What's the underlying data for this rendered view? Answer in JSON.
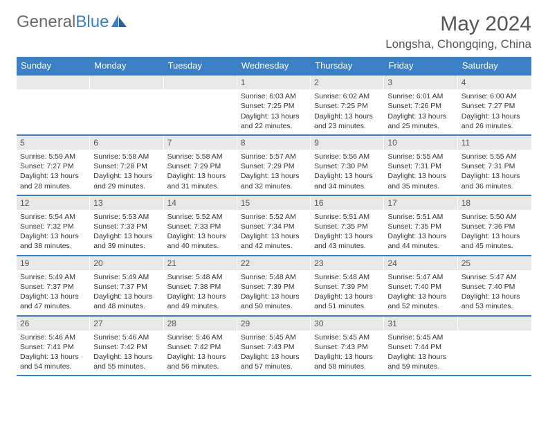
{
  "brand": {
    "name_gray": "General",
    "name_blue": "Blue"
  },
  "title": "May 2024",
  "location": "Longsha, Chongqing, China",
  "theme": {
    "header_bg": "#3b7fc4",
    "row_border": "#3b7fc4",
    "daynum_bg": "#e8e8e8",
    "text": "#333333",
    "muted": "#555555"
  },
  "weekdays": [
    "Sunday",
    "Monday",
    "Tuesday",
    "Wednesday",
    "Thursday",
    "Friday",
    "Saturday"
  ],
  "weeks": [
    [
      null,
      null,
      null,
      {
        "d": "1",
        "sr": "6:03 AM",
        "ss": "7:25 PM",
        "dl": "13 hours and 22 minutes."
      },
      {
        "d": "2",
        "sr": "6:02 AM",
        "ss": "7:25 PM",
        "dl": "13 hours and 23 minutes."
      },
      {
        "d": "3",
        "sr": "6:01 AM",
        "ss": "7:26 PM",
        "dl": "13 hours and 25 minutes."
      },
      {
        "d": "4",
        "sr": "6:00 AM",
        "ss": "7:27 PM",
        "dl": "13 hours and 26 minutes."
      }
    ],
    [
      {
        "d": "5",
        "sr": "5:59 AM",
        "ss": "7:27 PM",
        "dl": "13 hours and 28 minutes."
      },
      {
        "d": "6",
        "sr": "5:58 AM",
        "ss": "7:28 PM",
        "dl": "13 hours and 29 minutes."
      },
      {
        "d": "7",
        "sr": "5:58 AM",
        "ss": "7:29 PM",
        "dl": "13 hours and 31 minutes."
      },
      {
        "d": "8",
        "sr": "5:57 AM",
        "ss": "7:29 PM",
        "dl": "13 hours and 32 minutes."
      },
      {
        "d": "9",
        "sr": "5:56 AM",
        "ss": "7:30 PM",
        "dl": "13 hours and 34 minutes."
      },
      {
        "d": "10",
        "sr": "5:55 AM",
        "ss": "7:31 PM",
        "dl": "13 hours and 35 minutes."
      },
      {
        "d": "11",
        "sr": "5:55 AM",
        "ss": "7:31 PM",
        "dl": "13 hours and 36 minutes."
      }
    ],
    [
      {
        "d": "12",
        "sr": "5:54 AM",
        "ss": "7:32 PM",
        "dl": "13 hours and 38 minutes."
      },
      {
        "d": "13",
        "sr": "5:53 AM",
        "ss": "7:33 PM",
        "dl": "13 hours and 39 minutes."
      },
      {
        "d": "14",
        "sr": "5:52 AM",
        "ss": "7:33 PM",
        "dl": "13 hours and 40 minutes."
      },
      {
        "d": "15",
        "sr": "5:52 AM",
        "ss": "7:34 PM",
        "dl": "13 hours and 42 minutes."
      },
      {
        "d": "16",
        "sr": "5:51 AM",
        "ss": "7:35 PM",
        "dl": "13 hours and 43 minutes."
      },
      {
        "d": "17",
        "sr": "5:51 AM",
        "ss": "7:35 PM",
        "dl": "13 hours and 44 minutes."
      },
      {
        "d": "18",
        "sr": "5:50 AM",
        "ss": "7:36 PM",
        "dl": "13 hours and 45 minutes."
      }
    ],
    [
      {
        "d": "19",
        "sr": "5:49 AM",
        "ss": "7:37 PM",
        "dl": "13 hours and 47 minutes."
      },
      {
        "d": "20",
        "sr": "5:49 AM",
        "ss": "7:37 PM",
        "dl": "13 hours and 48 minutes."
      },
      {
        "d": "21",
        "sr": "5:48 AM",
        "ss": "7:38 PM",
        "dl": "13 hours and 49 minutes."
      },
      {
        "d": "22",
        "sr": "5:48 AM",
        "ss": "7:39 PM",
        "dl": "13 hours and 50 minutes."
      },
      {
        "d": "23",
        "sr": "5:48 AM",
        "ss": "7:39 PM",
        "dl": "13 hours and 51 minutes."
      },
      {
        "d": "24",
        "sr": "5:47 AM",
        "ss": "7:40 PM",
        "dl": "13 hours and 52 minutes."
      },
      {
        "d": "25",
        "sr": "5:47 AM",
        "ss": "7:40 PM",
        "dl": "13 hours and 53 minutes."
      }
    ],
    [
      {
        "d": "26",
        "sr": "5:46 AM",
        "ss": "7:41 PM",
        "dl": "13 hours and 54 minutes."
      },
      {
        "d": "27",
        "sr": "5:46 AM",
        "ss": "7:42 PM",
        "dl": "13 hours and 55 minutes."
      },
      {
        "d": "28",
        "sr": "5:46 AM",
        "ss": "7:42 PM",
        "dl": "13 hours and 56 minutes."
      },
      {
        "d": "29",
        "sr": "5:45 AM",
        "ss": "7:43 PM",
        "dl": "13 hours and 57 minutes."
      },
      {
        "d": "30",
        "sr": "5:45 AM",
        "ss": "7:43 PM",
        "dl": "13 hours and 58 minutes."
      },
      {
        "d": "31",
        "sr": "5:45 AM",
        "ss": "7:44 PM",
        "dl": "13 hours and 59 minutes."
      },
      null
    ]
  ],
  "labels": {
    "sunrise": "Sunrise:",
    "sunset": "Sunset:",
    "daylight": "Daylight:"
  }
}
